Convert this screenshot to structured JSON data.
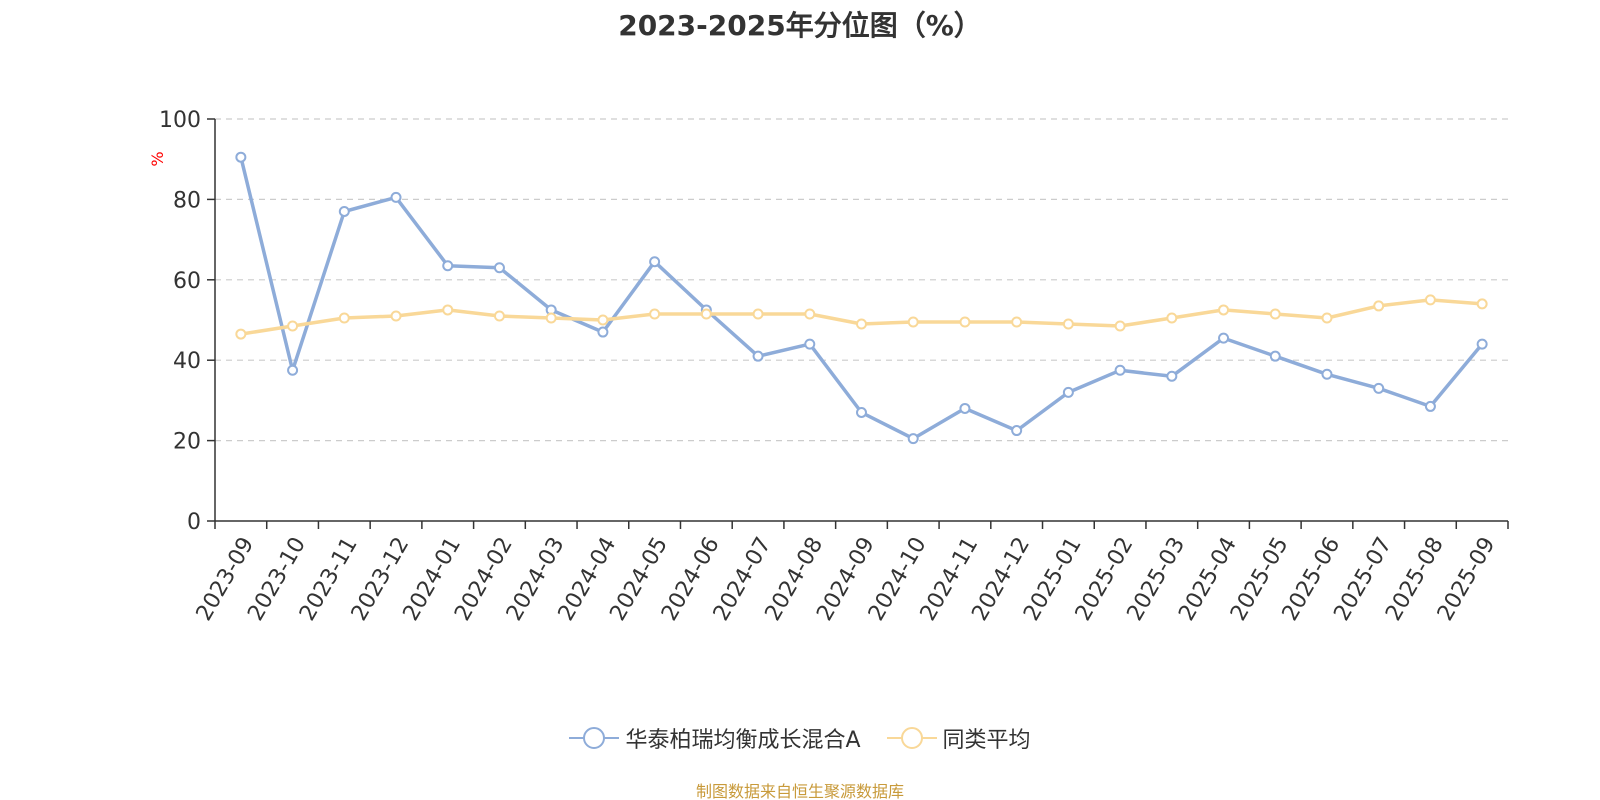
{
  "chart_data": {
    "type": "line",
    "title": "2023-2025年分位图（%）",
    "ylabel": "%",
    "xlabel": "",
    "ylim": [
      0,
      100
    ],
    "yticks": [
      0,
      20,
      40,
      60,
      80,
      100
    ],
    "grid": true,
    "legend_position": "bottom",
    "categories": [
      "2023-09",
      "2023-10",
      "2023-11",
      "2023-12",
      "2024-01",
      "2024-02",
      "2024-03",
      "2024-04",
      "2024-05",
      "2024-06",
      "2024-07",
      "2024-08",
      "2024-09",
      "2024-10",
      "2024-11",
      "2024-12",
      "2025-01",
      "2025-02",
      "2025-03",
      "2025-04",
      "2025-05",
      "2025-06",
      "2025-07",
      "2025-08",
      "2025-09"
    ],
    "series": [
      {
        "name": "华泰柏瑞均衡成长混合A",
        "color": "#8eacd9",
        "values": [
          90.5,
          37.5,
          77.0,
          80.5,
          63.5,
          63.0,
          52.5,
          47.0,
          64.5,
          52.5,
          41.0,
          44.0,
          27.0,
          20.5,
          28.0,
          22.5,
          32.0,
          37.5,
          36.0,
          45.5,
          41.0,
          36.5,
          33.0,
          28.5,
          44.0
        ]
      },
      {
        "name": "同类平均",
        "color": "#f9d898",
        "values": [
          46.5,
          48.5,
          50.5,
          51.0,
          52.5,
          51.0,
          50.5,
          50.0,
          51.5,
          51.5,
          51.5,
          51.5,
          49.0,
          49.5,
          49.5,
          49.5,
          49.0,
          48.5,
          50.5,
          52.5,
          51.5,
          50.5,
          53.5,
          55.0,
          54.0
        ]
      }
    ]
  },
  "source_text": "制图数据来自恒生聚源数据库",
  "colors": {
    "axis": "#333333",
    "grid": "#cccccc",
    "ylabel": "#ff0000",
    "source": "#c89a3a"
  }
}
